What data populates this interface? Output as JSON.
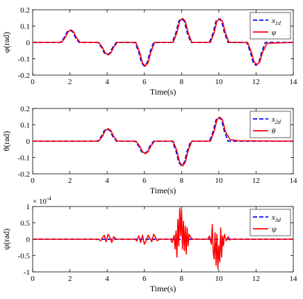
{
  "chart_data": [
    {
      "type": "line",
      "xlabel": "Time(s)",
      "ylabel": "φ(rad)",
      "xlim": [
        0,
        14
      ],
      "ylim": [
        -0.2,
        0.2
      ],
      "xticks": [
        0,
        2,
        4,
        6,
        8,
        10,
        12,
        14
      ],
      "xtick_labels": [
        "0",
        "2",
        "4",
        "6",
        "8",
        "10",
        "12",
        "14"
      ],
      "yticks": [
        -0.2,
        -0.1,
        0,
        0.1,
        0.2
      ],
      "ytick_labels": [
        "-0.2",
        "-0.1",
        "0",
        "0.1",
        "0.2"
      ],
      "legend_position": "top-right",
      "series": [
        {
          "name": "x1d",
          "color": "#0000ff",
          "dash": true,
          "x": [
            0,
            1.5,
            1.7,
            1.85,
            2,
            2.15,
            2.3,
            2.5,
            3.5,
            3.7,
            3.85,
            4,
            4.15,
            4.3,
            4.5,
            5.5,
            5.7,
            5.85,
            6,
            6.15,
            6.3,
            6.5,
            7.5,
            7.7,
            7.85,
            8,
            8.15,
            8.3,
            8.5,
            9.5,
            9.7,
            9.85,
            10,
            10.15,
            10.3,
            10.5,
            11.5,
            11.7,
            11.85,
            12,
            12.15,
            12.3,
            12.5,
            14
          ],
          "y": [
            0,
            0,
            0.03,
            0.065,
            0.075,
            0.065,
            0.03,
            0,
            0,
            -0.03,
            -0.065,
            -0.075,
            -0.065,
            -0.03,
            0,
            0,
            -0.06,
            -0.125,
            -0.145,
            -0.125,
            -0.06,
            0,
            0,
            0.06,
            0.13,
            0.145,
            0.13,
            0.06,
            0,
            0,
            0.06,
            0.13,
            0.145,
            0.13,
            0.06,
            0,
            0,
            -0.06,
            -0.125,
            -0.14,
            -0.125,
            -0.06,
            0,
            0
          ]
        },
        {
          "name": "φ",
          "color": "#ff0000",
          "dash": false,
          "x": [
            0,
            1.55,
            1.75,
            1.9,
            2.05,
            2.2,
            2.35,
            2.55,
            3.55,
            3.75,
            3.9,
            4.05,
            4.2,
            4.35,
            4.55,
            5.55,
            5.75,
            5.9,
            6.05,
            6.2,
            6.35,
            6.55,
            7.55,
            7.75,
            7.9,
            8.05,
            8.2,
            8.35,
            8.55,
            9.55,
            9.75,
            9.9,
            10.05,
            10.2,
            10.35,
            10.55,
            11.55,
            11.75,
            11.9,
            12.05,
            12.2,
            12.35,
            12.6,
            14
          ],
          "y": [
            0,
            0,
            0.03,
            0.065,
            0.077,
            0.065,
            0.03,
            0,
            0,
            -0.03,
            -0.065,
            -0.077,
            -0.065,
            -0.03,
            0,
            0,
            -0.06,
            -0.125,
            -0.145,
            -0.125,
            -0.06,
            0,
            0,
            0.06,
            0.13,
            0.147,
            0.13,
            0.06,
            0,
            0,
            0.06,
            0.13,
            0.145,
            0.13,
            0.06,
            0,
            0,
            -0.06,
            -0.12,
            -0.135,
            -0.12,
            -0.06,
            -0.005,
            0
          ]
        }
      ]
    },
    {
      "type": "line",
      "xlabel": "Time(s)",
      "ylabel": "θ(rad)",
      "xlim": [
        0,
        14
      ],
      "ylim": [
        -0.2,
        0.2
      ],
      "xticks": [
        0,
        2,
        4,
        6,
        8,
        10,
        12,
        14
      ],
      "xtick_labels": [
        "0",
        "2",
        "4",
        "6",
        "8",
        "10",
        "12",
        "14"
      ],
      "yticks": [
        -0.2,
        -0.1,
        0,
        0.1,
        0.2
      ],
      "ytick_labels": [
        "-0.2",
        "-0.1",
        "0",
        "0.1",
        "0.2"
      ],
      "legend_position": "top-right",
      "series": [
        {
          "name": "x2d",
          "color": "#0000ff",
          "dash": true,
          "x": [
            0,
            3.5,
            3.7,
            3.85,
            4,
            4.15,
            4.3,
            4.5,
            5.5,
            5.7,
            5.85,
            6,
            6.15,
            6.3,
            6.5,
            7.5,
            7.7,
            7.85,
            8,
            8.15,
            8.3,
            8.5,
            9.5,
            9.7,
            9.85,
            10,
            10.15,
            10.3,
            10.5,
            14
          ],
          "y": [
            0,
            0,
            0.03,
            0.065,
            0.075,
            0.065,
            0.03,
            0,
            0,
            -0.03,
            -0.065,
            -0.075,
            -0.065,
            -0.03,
            0,
            0,
            -0.06,
            -0.13,
            -0.15,
            -0.13,
            -0.06,
            0,
            0,
            0.06,
            0.13,
            0.145,
            0.13,
            0.06,
            0,
            0
          ]
        },
        {
          "name": "θ",
          "color": "#ff0000",
          "dash": false,
          "x": [
            0,
            3.55,
            3.75,
            3.9,
            4.05,
            4.2,
            4.35,
            4.55,
            5.55,
            5.75,
            5.9,
            6.05,
            6.2,
            6.35,
            6.55,
            7.55,
            7.75,
            7.9,
            8.05,
            8.2,
            8.35,
            8.55,
            9.55,
            9.75,
            9.9,
            10.05,
            10.2,
            10.35,
            10.6,
            11,
            14
          ],
          "y": [
            0,
            0,
            0.03,
            0.065,
            0.077,
            0.065,
            0.03,
            0,
            0,
            -0.03,
            -0.065,
            -0.077,
            -0.065,
            -0.03,
            0,
            0,
            -0.06,
            -0.13,
            -0.152,
            -0.13,
            -0.06,
            0,
            0,
            0.06,
            0.13,
            0.147,
            0.13,
            0.06,
            0.01,
            0.003,
            0
          ]
        }
      ]
    },
    {
      "type": "line",
      "xlabel": "Time(s)",
      "ylabel": "ψ(rad)",
      "y_multiplier": "× 10",
      "y_exponent": "-4",
      "xlim": [
        0,
        14
      ],
      "ylim": [
        -1,
        1
      ],
      "xticks": [
        0,
        2,
        4,
        6,
        8,
        10,
        12,
        14
      ],
      "xtick_labels": [
        "0",
        "2",
        "4",
        "6",
        "8",
        "10",
        "12",
        "14"
      ],
      "yticks": [
        -1,
        -0.5,
        0,
        0.5,
        1
      ],
      "ytick_labels": [
        "-1",
        "-0.5",
        "0",
        "0.5",
        "1"
      ],
      "legend_position": "top-right",
      "series": [
        {
          "name": "x3d",
          "color": "#0000ff",
          "dash": true,
          "x": [
            0,
            14
          ],
          "y": [
            0,
            0
          ]
        },
        {
          "name": "ψ",
          "color": "#ff0000",
          "dash": false,
          "x": [
            0,
            3.55,
            3.65,
            3.75,
            3.85,
            3.95,
            4.05,
            4.15,
            4.25,
            4.35,
            4.5,
            5.5,
            5.6,
            5.7,
            5.8,
            5.9,
            6.0,
            6.1,
            6.2,
            6.3,
            6.4,
            6.5,
            6.6,
            6.7,
            6.8,
            7.4,
            7.5,
            7.6,
            7.65,
            7.7,
            7.75,
            7.8,
            7.85,
            7.9,
            7.95,
            8.0,
            8.05,
            8.1,
            8.15,
            8.2,
            8.25,
            8.3,
            8.35,
            8.4,
            8.5,
            8.6,
            9.4,
            9.5,
            9.6,
            9.65,
            9.7,
            9.75,
            9.8,
            9.85,
            9.9,
            9.95,
            10.0,
            10.05,
            10.1,
            10.15,
            10.2,
            10.25,
            10.3,
            10.35,
            10.4,
            10.5,
            10.6,
            10.7,
            14
          ],
          "y": [
            0,
            0,
            -0.05,
            0.05,
            0.12,
            -0.08,
            0.15,
            0.05,
            -0.1,
            0.08,
            0,
            0,
            -0.05,
            0.1,
            -0.1,
            0.12,
            -0.15,
            -0.05,
            0.12,
            0.03,
            -0.08,
            0.15,
            0.05,
            -0.05,
            0,
            0,
            -0.1,
            0.12,
            -0.3,
            0.25,
            -0.55,
            0.6,
            -0.2,
            0.95,
            0.1,
            0.9,
            -0.3,
            0.55,
            -0.35,
            0.4,
            -0.45,
            0.35,
            -0.2,
            0.15,
            0.05,
            0,
            0,
            0.1,
            -0.15,
            0.45,
            -0.4,
            -0.6,
            0.2,
            -0.8,
            0.15,
            -0.9,
            -0.2,
            -0.7,
            0.35,
            -0.55,
            0.1,
            -0.2,
            0.15,
            0.05,
            -0.05,
            0.08,
            -0.02,
            0,
            0
          ]
        }
      ]
    }
  ]
}
